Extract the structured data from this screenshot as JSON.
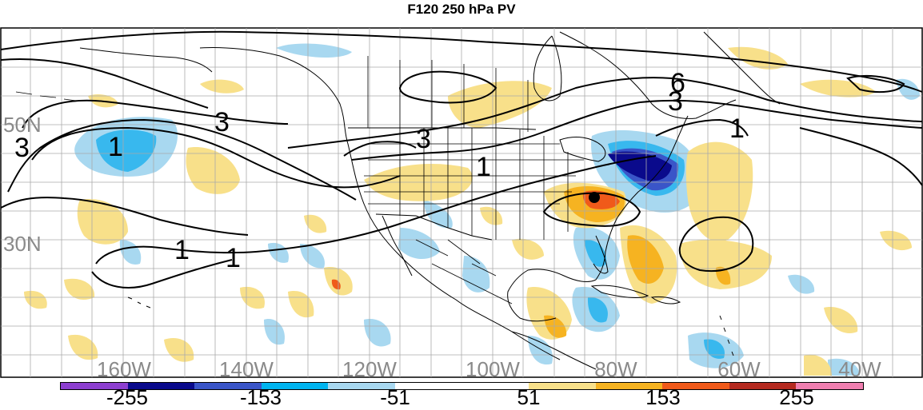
{
  "title": "F120 250 hPa PV",
  "lat_labels": [
    "50N",
    "30N"
  ],
  "lon_labels": [
    "160W",
    "140W",
    "120W",
    "100W",
    "80W",
    "60W",
    "40W"
  ],
  "contour_labels": [
    "3",
    "3",
    "3",
    "1",
    "1",
    "1",
    "6",
    "3",
    "1"
  ],
  "colorbar": {
    "labels": [
      "-255",
      "-153",
      "-51",
      "51",
      "153",
      "255"
    ],
    "colors": [
      "#8d3fd0",
      "#0a0a8c",
      "#3a55c8",
      "#00b4f0",
      "#a8d8f0",
      "#ffffff",
      "#ffffff",
      "#f8e08a",
      "#f6b321",
      "#f05a1a",
      "#b52a20",
      "#f07fb0"
    ]
  },
  "colors": {
    "land_outline": "#000000",
    "grid": "#aaaaaa",
    "axis_label": "#8a8a8a",
    "neg_light": "#a8d8f0",
    "neg_mid": "#38b8ee",
    "neg_strong": "#3a55c8",
    "neg_deep": "#0a0a8c",
    "pos_light": "#f8e08a",
    "pos_mid": "#f6b321",
    "pos_strong": "#f05a1a"
  },
  "marker": "dot"
}
